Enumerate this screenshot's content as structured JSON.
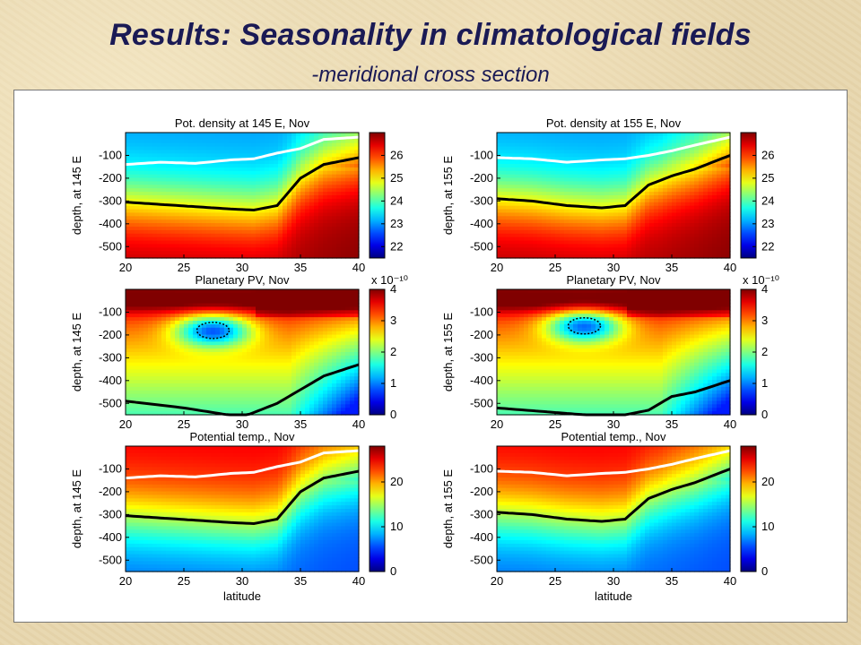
{
  "slide": {
    "title": "Results: Seasonality in climatological fields",
    "subtitle": "-meridional cross section"
  },
  "chart_data": [
    {
      "type": "heatmap",
      "title": "Pot. density at 145 E, Nov",
      "xlabel": "",
      "ylabel": "depth, at 145 E",
      "xticks": [
        "20",
        "25",
        "30",
        "35",
        "40"
      ],
      "yticks": [
        "-100",
        "-200",
        "-300",
        "-400",
        "-500"
      ],
      "xlim": [
        20,
        40
      ],
      "ylim": [
        -550,
        0
      ],
      "colorbar": {
        "ticks": [
          "26",
          "25",
          "24",
          "23",
          "22"
        ],
        "range": [
          21.5,
          27
        ],
        "exponent": ""
      },
      "thick_contour_depth": [
        [
          20,
          -305
        ],
        [
          23,
          -315
        ],
        [
          26,
          -325
        ],
        [
          29,
          -335
        ],
        [
          31,
          -340
        ],
        [
          33,
          -320
        ],
        [
          35,
          -200
        ],
        [
          37,
          -140
        ],
        [
          40,
          -110
        ]
      ],
      "white_contour_depth": [
        [
          20,
          -140
        ],
        [
          23,
          -130
        ],
        [
          26,
          -135
        ],
        [
          29,
          -120
        ],
        [
          31,
          -115
        ],
        [
          33,
          -90
        ],
        [
          35,
          -70
        ],
        [
          37,
          -30
        ],
        [
          40,
          -20
        ]
      ],
      "colorscale": {
        "top_value": 23.0,
        "bottom_value": 26.8,
        "north_top_value": 25.0
      }
    },
    {
      "type": "heatmap",
      "title": "Pot. density at 155 E, Nov",
      "xlabel": "",
      "ylabel": "depth, at 155 E",
      "xticks": [
        "20",
        "25",
        "30",
        "35",
        "40"
      ],
      "yticks": [
        "-100",
        "-200",
        "-300",
        "-400",
        "-500"
      ],
      "xlim": [
        20,
        40
      ],
      "ylim": [
        -550,
        0
      ],
      "colorbar": {
        "ticks": [
          "26",
          "25",
          "24",
          "23",
          "22"
        ],
        "range": [
          21.5,
          27
        ],
        "exponent": ""
      },
      "thick_contour_depth": [
        [
          20,
          -290
        ],
        [
          23,
          -300
        ],
        [
          26,
          -320
        ],
        [
          29,
          -330
        ],
        [
          31,
          -320
        ],
        [
          33,
          -230
        ],
        [
          35,
          -190
        ],
        [
          37,
          -160
        ],
        [
          40,
          -100
        ]
      ],
      "white_contour_depth": [
        [
          20,
          -110
        ],
        [
          23,
          -115
        ],
        [
          26,
          -130
        ],
        [
          29,
          -120
        ],
        [
          31,
          -115
        ],
        [
          33,
          -100
        ],
        [
          35,
          -80
        ],
        [
          37,
          -55
        ],
        [
          40,
          -20
        ]
      ],
      "colorscale": {
        "top_value": 23.0,
        "bottom_value": 26.8,
        "north_top_value": 25.0
      }
    },
    {
      "type": "heatmap",
      "title": "Planetary PV, Nov",
      "xlabel": "",
      "ylabel": "depth, at 145 E",
      "xticks": [
        "20",
        "25",
        "30",
        "35",
        "40"
      ],
      "yticks": [
        "-100",
        "-200",
        "-300",
        "-400",
        "-500"
      ],
      "xlim": [
        20,
        40
      ],
      "ylim": [
        -550,
        0
      ],
      "colorbar": {
        "ticks": [
          "4",
          "3",
          "2",
          "1",
          "0"
        ],
        "range": [
          0,
          4
        ],
        "exponent": "x 10⁻¹⁰"
      },
      "thick_contour_depth": [
        [
          20,
          -490
        ],
        [
          25,
          -520
        ],
        [
          30,
          -560
        ],
        [
          33,
          -500
        ],
        [
          35,
          -440
        ],
        [
          37,
          -380
        ],
        [
          40,
          -330
        ]
      ],
      "low_pv_core": {
        "lat": 27.5,
        "depth": -180,
        "value": 1.0
      },
      "colorscale": {
        "top_value": 3.9,
        "bottom_value": 1.8
      }
    },
    {
      "type": "heatmap",
      "title": "Planetary PV, Nov",
      "xlabel": "",
      "ylabel": "depth, at 155 E",
      "xticks": [
        "20",
        "25",
        "30",
        "35",
        "40"
      ],
      "yticks": [
        "-100",
        "-200",
        "-300",
        "-400",
        "-500"
      ],
      "xlim": [
        20,
        40
      ],
      "ylim": [
        -550,
        0
      ],
      "colorbar": {
        "ticks": [
          "4",
          "3",
          "2",
          "1",
          "0"
        ],
        "range": [
          0,
          4
        ],
        "exponent": "x 10⁻¹⁰"
      },
      "thick_contour_depth": [
        [
          20,
          -520
        ],
        [
          25,
          -540
        ],
        [
          30,
          -560
        ],
        [
          33,
          -530
        ],
        [
          35,
          -470
        ],
        [
          37,
          -450
        ],
        [
          40,
          -400
        ]
      ],
      "low_pv_core": {
        "lat": 27.5,
        "depth": -160,
        "value": 1.0
      },
      "colorscale": {
        "top_value": 3.9,
        "bottom_value": 1.8
      }
    },
    {
      "type": "heatmap",
      "title": "Potential temp., Nov",
      "xlabel": "latitude",
      "ylabel": "depth, at 145 E",
      "xticks": [
        "20",
        "25",
        "30",
        "35",
        "40"
      ],
      "yticks": [
        "-100",
        "-200",
        "-300",
        "-400",
        "-500"
      ],
      "xlim": [
        20,
        40
      ],
      "ylim": [
        -550,
        0
      ],
      "colorbar": {
        "ticks": [
          "20",
          "10",
          "0"
        ],
        "range": [
          0,
          28
        ],
        "exponent": ""
      },
      "thick_contour_depth": [
        [
          20,
          -305
        ],
        [
          23,
          -315
        ],
        [
          26,
          -325
        ],
        [
          29,
          -335
        ],
        [
          31,
          -340
        ],
        [
          33,
          -320
        ],
        [
          35,
          -200
        ],
        [
          37,
          -140
        ],
        [
          40,
          -110
        ]
      ],
      "white_contour_depth": [
        [
          20,
          -140
        ],
        [
          23,
          -130
        ],
        [
          26,
          -135
        ],
        [
          29,
          -120
        ],
        [
          31,
          -115
        ],
        [
          33,
          -90
        ],
        [
          35,
          -70
        ],
        [
          37,
          -30
        ],
        [
          40,
          -20
        ]
      ],
      "colorscale": {
        "top_value": 25,
        "bottom_value": 6,
        "north_top_value": 18
      }
    },
    {
      "type": "heatmap",
      "title": "Potential temp., Nov",
      "xlabel": "latitude",
      "ylabel": "depth, at 155 E",
      "xticks": [
        "20",
        "25",
        "30",
        "35",
        "40"
      ],
      "yticks": [
        "-100",
        "-200",
        "-300",
        "-400",
        "-500"
      ],
      "xlim": [
        20,
        40
      ],
      "ylim": [
        -550,
        0
      ],
      "colorbar": {
        "ticks": [
          "20",
          "10",
          "0"
        ],
        "range": [
          0,
          28
        ],
        "exponent": ""
      },
      "thick_contour_depth": [
        [
          20,
          -290
        ],
        [
          23,
          -300
        ],
        [
          26,
          -320
        ],
        [
          29,
          -330
        ],
        [
          31,
          -320
        ],
        [
          33,
          -230
        ],
        [
          35,
          -190
        ],
        [
          37,
          -160
        ],
        [
          40,
          -100
        ]
      ],
      "white_contour_depth": [
        [
          20,
          -110
        ],
        [
          23,
          -115
        ],
        [
          26,
          -130
        ],
        [
          29,
          -120
        ],
        [
          31,
          -115
        ],
        [
          33,
          -100
        ],
        [
          35,
          -80
        ],
        [
          37,
          -55
        ],
        [
          40,
          -20
        ]
      ],
      "colorscale": {
        "top_value": 25,
        "bottom_value": 6,
        "north_top_value": 18
      }
    }
  ]
}
